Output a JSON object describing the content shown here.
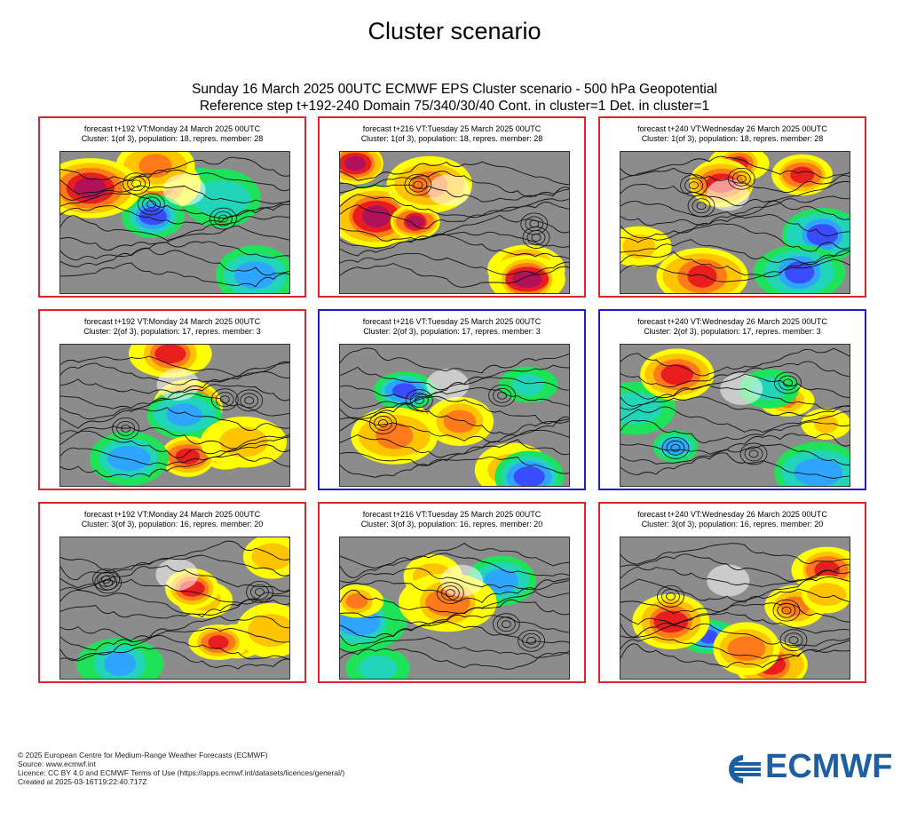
{
  "page": {
    "title": "Cluster scenario",
    "subtitle_line1": "Sunday 16 March 2025 00UTC ECMWF EPS Cluster scenario - 500 hPa Geopotential",
    "subtitle_line2": "Reference step t+192-240 Domain 75/340/30/40 Cont. in cluster=1 Det. in cluster=1"
  },
  "colors": {
    "red_frame": "#e0222a",
    "blue_frame": "#1b1fc4",
    "ecmwf_blue": "#1d5fa3"
  },
  "panels": [
    {
      "line1": "forecast t+192 VT:Monday 24 March 2025 00UTC",
      "line2": "Cluster: 1(of 3), population: 18, repres. member: 28",
      "frame": "red"
    },
    {
      "line1": "forecast t+216 VT:Tuesday 25 March 2025 00UTC",
      "line2": "Cluster: 1(of 3), population: 18, repres. member: 28",
      "frame": "red"
    },
    {
      "line1": "forecast t+240 VT:Wednesday 26 March 2025 00UTC",
      "line2": "Cluster: 1(of 3), population: 18, repres. member: 28",
      "frame": "red"
    },
    {
      "line1": "forecast t+192 VT:Monday 24 March 2025 00UTC",
      "line2": "Cluster: 2(of 3), population: 17, repres. member: 3",
      "frame": "red"
    },
    {
      "line1": "forecast t+216 VT:Tuesday 25 March 2025 00UTC",
      "line2": "Cluster: 2(of 3), population: 17, repres. member: 3",
      "frame": "blue"
    },
    {
      "line1": "forecast t+240 VT:Wednesday 26 March 2025 00UTC",
      "line2": "Cluster: 2(of 3), population: 17, repres. member: 3",
      "frame": "blue"
    },
    {
      "line1": "forecast t+192 VT:Monday 24 March 2025 00UTC",
      "line2": "Cluster: 3(of 3), population: 16, repres. member: 20",
      "frame": "red"
    },
    {
      "line1": "forecast t+216 VT:Tuesday 25 March 2025 00UTC",
      "line2": "Cluster: 3(of 3), population: 16, repres. member: 20",
      "frame": "red"
    },
    {
      "line1": "forecast t+240 VT:Wednesday 26 March 2025 00UTC",
      "line2": "Cluster: 3(of 3), population: 16, repres. member: 20",
      "frame": "red"
    }
  ],
  "footer": {
    "copyright": "© 2025 European Centre for Medium-Range Weather Forecasts (ECMWF)",
    "source": "Source: www.ecmwf.int",
    "licence": "Licence: CC BY 4.0 and ECMWF Terms of Use (https://apps.ecmwf.int/datasets/licences/general/)",
    "created": "Created at 2025-03-16T19:22:40.717Z",
    "logo_text": "ECMWF"
  }
}
